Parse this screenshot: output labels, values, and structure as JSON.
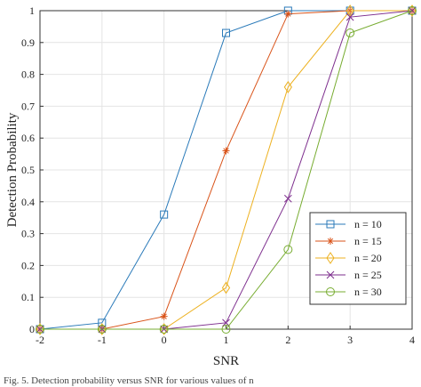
{
  "chart_data": {
    "type": "line",
    "title": "",
    "xlabel": "SNR",
    "ylabel": "Detection Probability",
    "xlim": [
      -2,
      4
    ],
    "ylim": [
      0,
      1
    ],
    "x": [
      -2,
      -1,
      0,
      1,
      2,
      3,
      4
    ],
    "xticks": [
      "-2",
      "-1",
      "0",
      "1",
      "2",
      "3",
      "4"
    ],
    "yticks": [
      "0",
      "0.1",
      "0.2",
      "0.3",
      "0.4",
      "0.5",
      "0.6",
      "0.7",
      "0.8",
      "0.9",
      "1"
    ],
    "grid": true,
    "legend_position": "bottom-right",
    "series": [
      {
        "name": "n = 10",
        "marker": "square",
        "color": "#2a7ab9",
        "values": [
          0,
          0.02,
          0.36,
          0.93,
          1.0,
          1.0,
          1.0
        ]
      },
      {
        "name": "n = 15",
        "marker": "star",
        "color": "#d95319",
        "values": [
          0,
          0,
          0.04,
          0.56,
          0.99,
          1.0,
          1.0
        ]
      },
      {
        "name": "n = 20",
        "marker": "diamond",
        "color": "#edb120",
        "values": [
          0,
          0,
          0,
          0.13,
          0.76,
          1.0,
          1.0
        ]
      },
      {
        "name": "n = 25",
        "marker": "x",
        "color": "#7e2f8e",
        "values": [
          0,
          0,
          0,
          0.02,
          0.41,
          0.98,
          1.0
        ]
      },
      {
        "name": "n = 30",
        "marker": "circle",
        "color": "#77ac30",
        "values": [
          0,
          0,
          0,
          0,
          0.25,
          0.93,
          1.0
        ]
      }
    ]
  },
  "caption": "Fig. 5.  Detection probability versus SNR for various values of n"
}
